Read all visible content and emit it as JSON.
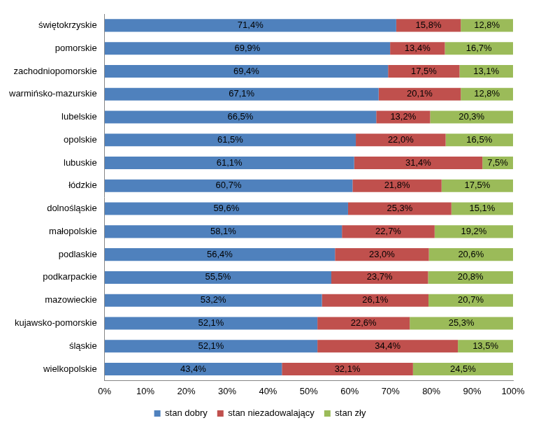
{
  "chart_data": {
    "type": "bar",
    "orientation": "horizontal",
    "stacked": true,
    "data_labels": true,
    "grid": false,
    "legend": "bottom",
    "categories": [
      "świętokrzyskie",
      "pomorskie",
      "zachodniopomorskie",
      "warmińsko-mazurskie",
      "lubelskie",
      "opolskie",
      "lubuskie",
      "łódzkie",
      "dolnośląskie",
      "małopolskie",
      "podlaskie",
      "podkarpackie",
      "mazowieckie",
      "kujawsko-pomorskie",
      "śląskie",
      "wielkopolskie"
    ],
    "series": [
      {
        "name": "stan dobry",
        "color": "#4f81bd",
        "values": [
          71.4,
          69.9,
          69.4,
          67.1,
          66.5,
          61.5,
          61.1,
          60.7,
          59.6,
          58.1,
          56.4,
          55.5,
          53.2,
          52.1,
          52.1,
          43.4
        ],
        "value_labels": [
          "71,4%",
          "69,9%",
          "69,4%",
          "67,1%",
          "66,5%",
          "61,5%",
          "61,1%",
          "60,7%",
          "59,6%",
          "58,1%",
          "56,4%",
          "55,5%",
          "53,2%",
          "52,1%",
          "52,1%",
          "43,4%"
        ]
      },
      {
        "name": "stan niezadowalający",
        "color": "#c0504d",
        "values": [
          15.8,
          13.4,
          17.5,
          20.1,
          13.2,
          22.0,
          31.4,
          21.8,
          25.3,
          22.7,
          23.0,
          23.7,
          26.1,
          22.6,
          34.4,
          32.1
        ],
        "value_labels": [
          "15,8%",
          "13,4%",
          "17,5%",
          "20,1%",
          "13,2%",
          "22,0%",
          "31,4%",
          "21,8%",
          "25,3%",
          "22,7%",
          "23,0%",
          "23,7%",
          "26,1%",
          "22,6%",
          "34,4%",
          "32,1%"
        ]
      },
      {
        "name": "stan zły",
        "color": "#9bbb59",
        "values": [
          12.8,
          16.7,
          13.1,
          12.8,
          20.3,
          16.5,
          7.5,
          17.5,
          15.1,
          19.2,
          20.6,
          20.8,
          20.7,
          25.3,
          13.5,
          24.5
        ],
        "value_labels": [
          "12,8%",
          "16,7%",
          "13,1%",
          "12,8%",
          "20,3%",
          "16,5%",
          "7,5%",
          "17,5%",
          "15,1%",
          "19,2%",
          "20,6%",
          "20,8%",
          "20,7%",
          "25,3%",
          "13,5%",
          "24,5%"
        ]
      }
    ],
    "xlim": [
      0,
      100
    ],
    "xticks": [
      {
        "value": 0,
        "label": "0%"
      },
      {
        "value": 10,
        "label": "10%"
      },
      {
        "value": 20,
        "label": "20%"
      },
      {
        "value": 30,
        "label": "30%"
      },
      {
        "value": 40,
        "label": "40%"
      },
      {
        "value": 50,
        "label": "50%"
      },
      {
        "value": 60,
        "label": "60%"
      },
      {
        "value": 70,
        "label": "70%"
      },
      {
        "value": 80,
        "label": "80%"
      },
      {
        "value": 90,
        "label": "90%"
      },
      {
        "value": 100,
        "label": "100%"
      }
    ]
  }
}
